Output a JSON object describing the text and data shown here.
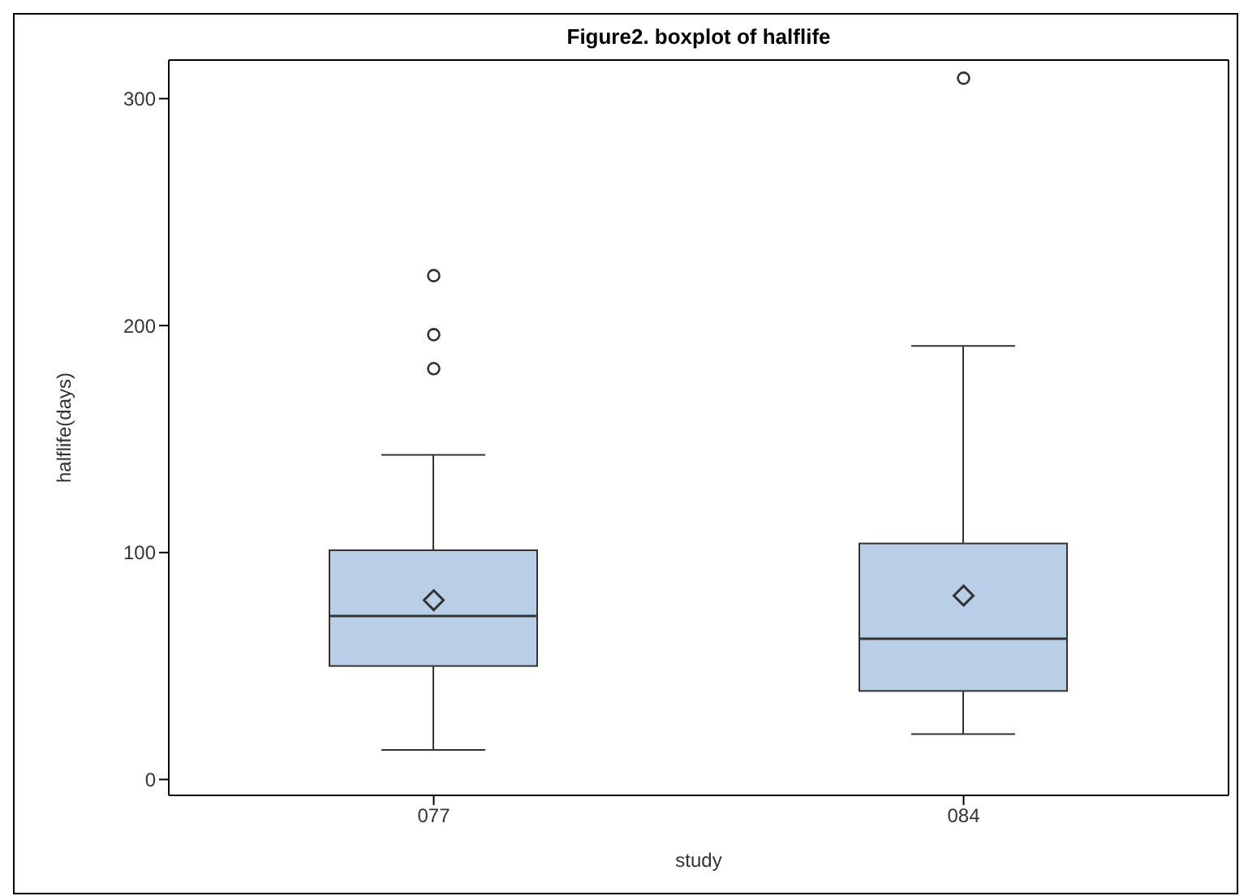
{
  "chart_data": {
    "type": "box",
    "title": "Figure2. boxplot of halflife",
    "xlabel": "study",
    "ylabel": "halflife(days)",
    "categories": [
      "077",
      "084"
    ],
    "color": "#b9cfe7",
    "boxes": [
      {
        "low": 13,
        "q1": 50,
        "median": 72,
        "q3": 101,
        "high": 143,
        "mean": 79,
        "outliers": [
          181,
          196,
          222
        ]
      },
      {
        "low": 20,
        "q1": 39,
        "median": 62,
        "q3": 104,
        "high": 191,
        "mean": 81,
        "outliers": [
          309
        ]
      }
    ],
    "ylim": [
      -7,
      317
    ],
    "yticks": [
      0,
      100,
      200,
      300
    ]
  }
}
